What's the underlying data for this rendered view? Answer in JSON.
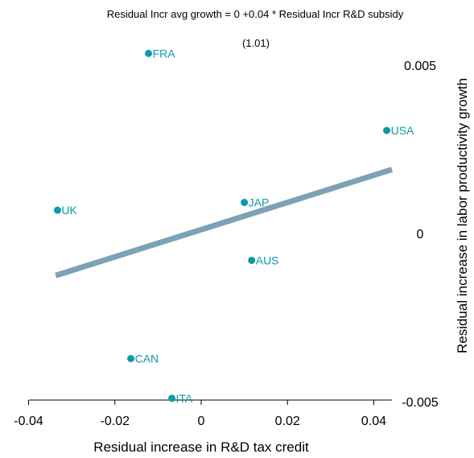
{
  "chart_data": {
    "type": "scatter",
    "title": "Residual Incr avg growth = 0 +0.04 * Residual Incr R&D subsidy",
    "subtitle": "(1.01)",
    "xlabel": "Residual increase in R&D tax credit",
    "ylabel": "Residual increase in labor productivity growth",
    "xlim": [
      -0.042,
      0.044
    ],
    "ylim": [
      -0.005,
      0.0052
    ],
    "x_ticks": [
      -0.04,
      -0.02,
      0,
      0.02,
      0.04
    ],
    "x_tick_labels": [
      "-0.04",
      "-0.02",
      "0",
      "0.02",
      "0.04"
    ],
    "y_ticks": [
      0.005,
      0,
      -0.005
    ],
    "y_tick_labels": [
      "0.005",
      "0",
      "-0.005"
    ],
    "y_axis_position": "right",
    "grid": false,
    "colors": {
      "points": "#0e9aa7",
      "fit_line": "#7ba2b6"
    },
    "points": [
      {
        "label": "FRA",
        "x": -0.0122,
        "y": 0.00535
      },
      {
        "label": "USA",
        "x": 0.043,
        "y": 0.00306
      },
      {
        "label": "UK",
        "x": -0.0333,
        "y": 0.00069
      },
      {
        "label": "JAP",
        "x": 0.01,
        "y": 0.00092
      },
      {
        "label": "AUS",
        "x": 0.0117,
        "y": -0.0008
      },
      {
        "label": "CAN",
        "x": -0.0163,
        "y": -0.00372
      },
      {
        "label": "ITA",
        "x": -0.0068,
        "y": -0.0049
      }
    ],
    "fit_line": {
      "x": [
        -0.0337,
        0.0442
      ],
      "y": [
        -0.00125,
        0.0019
      ]
    }
  }
}
